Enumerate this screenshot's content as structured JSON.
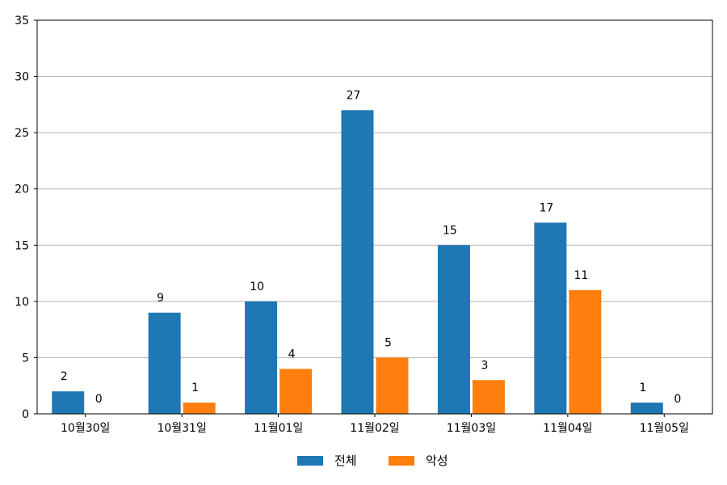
{
  "chart_data": {
    "type": "bar",
    "categories": [
      "10월30일",
      "10월31일",
      "11월01일",
      "11월02일",
      "11월03일",
      "11월04일",
      "11월05일"
    ],
    "series": [
      {
        "name": "전체",
        "color": "#1f77b4",
        "values": [
          2,
          9,
          10,
          27,
          15,
          17,
          1
        ]
      },
      {
        "name": "악성",
        "color": "#ff7f0e",
        "values": [
          0,
          1,
          4,
          5,
          3,
          11,
          0
        ]
      }
    ],
    "ylim": [
      0,
      35
    ],
    "yticks": [
      0,
      5,
      10,
      15,
      20,
      25,
      30,
      35
    ],
    "grid": "horizontal",
    "legend_position": "bottom-center",
    "data_labels": true
  }
}
